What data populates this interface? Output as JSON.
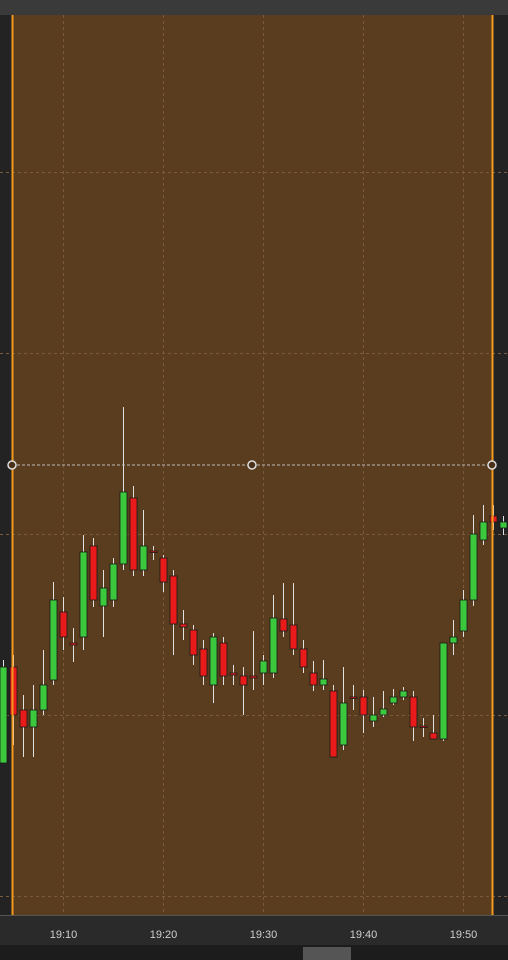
{
  "chart_data": {
    "type": "candlestick",
    "x": [
      4,
      5,
      6,
      7,
      8,
      9,
      10,
      11,
      12,
      13,
      14,
      15,
      16,
      17,
      18,
      19,
      20,
      21,
      22,
      23,
      24,
      25,
      26,
      27,
      28,
      29,
      30,
      31,
      32,
      33,
      34,
      35,
      36,
      37,
      38,
      39,
      40,
      41,
      42,
      43,
      44,
      45,
      46,
      47,
      48,
      49,
      50,
      51,
      52,
      53,
      54
    ],
    "open": [
      15.2,
      24.8,
      20.5,
      18.8,
      20.5,
      23.5,
      30.3,
      27.2,
      27.8,
      36.9,
      30.9,
      31.5,
      35.1,
      41.7,
      34.5,
      36.4,
      35.7,
      33.9,
      29.1,
      28.5,
      26.6,
      23,
      27.2,
      24.2,
      23.9,
      23.9,
      24.2,
      24.2,
      29.6,
      29,
      26.6,
      24.2,
      23,
      22.4,
      17,
      21.8,
      21.8,
      19.4,
      20,
      21.2,
      21.8,
      21.8,
      18.9,
      18.2,
      17.6,
      27.2,
      28.4,
      31.5,
      37.5,
      39.9,
      38.7
    ],
    "high": [
      25.5,
      26,
      22,
      23,
      26.5,
      33.3,
      31.8,
      28.7,
      38,
      37.7,
      34.5,
      35.7,
      50.8,
      42.9,
      40.5,
      36.9,
      36,
      34.5,
      30.5,
      29,
      27.5,
      28.2,
      27.8,
      25,
      24.8,
      28.4,
      26,
      32,
      33.2,
      33.2,
      27.5,
      25.4,
      25.5,
      23,
      24.8,
      23,
      22.5,
      21.8,
      22.4,
      22.6,
      22.8,
      22.4,
      19.7,
      20,
      27.2,
      29.5,
      32.5,
      40,
      41,
      41,
      39.9
    ],
    "low": [
      15.2,
      17,
      15.8,
      15.8,
      20,
      23,
      26.5,
      25.3,
      26.5,
      30.8,
      27.8,
      30.8,
      34.5,
      33.9,
      33.9,
      35.5,
      32.3,
      26,
      27.5,
      25,
      23,
      21.2,
      23,
      23,
      20,
      22.5,
      23,
      23.7,
      27.8,
      26,
      24.2,
      22.4,
      22.5,
      15.8,
      16.5,
      20.5,
      18.2,
      18.8,
      19.8,
      21,
      21.5,
      17.4,
      17.8,
      17.6,
      17.4,
      26,
      27.8,
      30.9,
      37,
      38.5,
      38
    ],
    "close": [
      24.8,
      20,
      18.8,
      20.5,
      23,
      31.5,
      27.8,
      27,
      36.3,
      31.5,
      32.7,
      35.1,
      42.3,
      34.5,
      36.9,
      36.3,
      33.3,
      29.1,
      28.8,
      26,
      23.9,
      27.8,
      23.9,
      24,
      23,
      23.7,
      25.4,
      29.7,
      28.4,
      26.6,
      24.8,
      23,
      23.6,
      15.8,
      21.2,
      21.7,
      20,
      20,
      20.6,
      21.8,
      22.4,
      18.8,
      18.8,
      17.6,
      27.2,
      27.8,
      31.5,
      38.1,
      39.3,
      39.3,
      39.3
    ],
    "up_color": "#3cc83c",
    "down_color": "#e81a1a",
    "xlim": [
      3.7,
      54.5
    ],
    "xticks": [
      {
        "value": 10,
        "label": "19:10"
      },
      {
        "value": 20,
        "label": "19:20"
      },
      {
        "value": 30,
        "label": "19:30"
      },
      {
        "value": 40,
        "label": "19:40"
      },
      {
        "value": 50,
        "label": "19:50"
      }
    ],
    "ylim": [
      0,
      90
    ],
    "yticks": [
      1.9,
      20,
      38.1,
      56.2,
      74.3
    ],
    "grid": true
  }
}
